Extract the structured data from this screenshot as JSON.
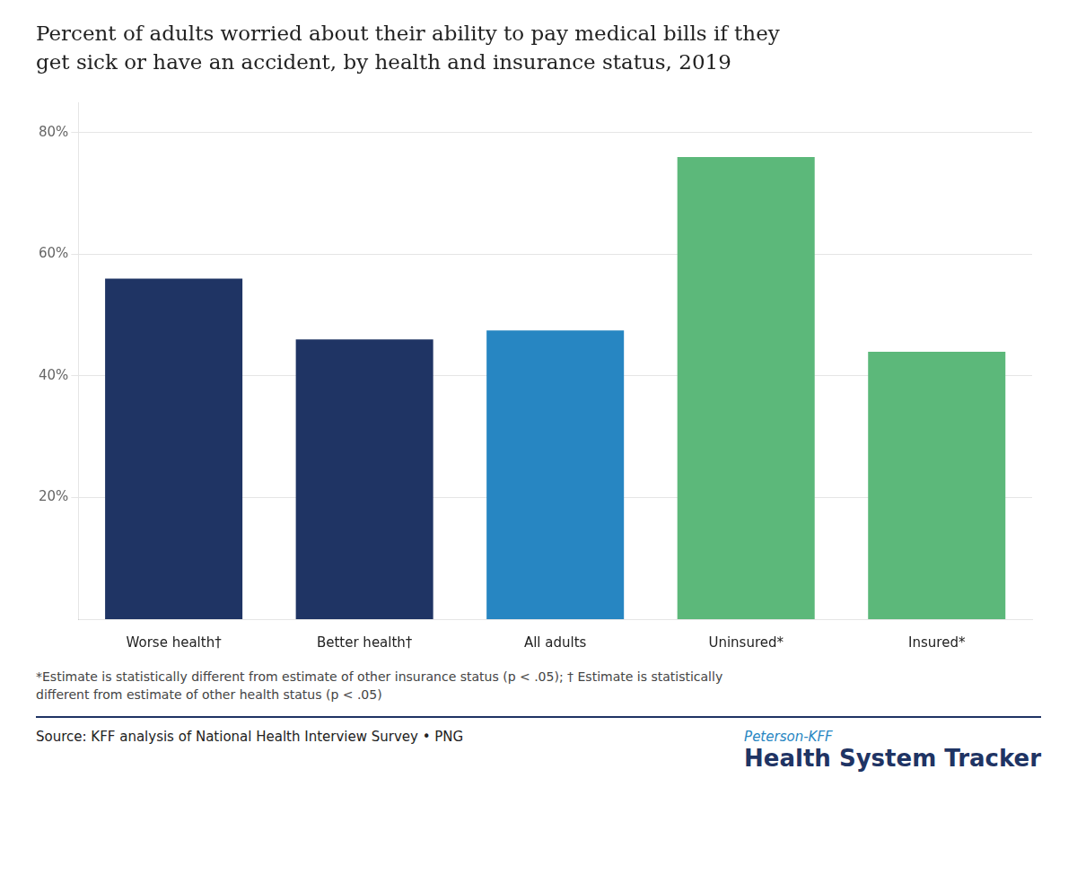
{
  "chart_data": {
    "type": "bar",
    "title": [
      "Percent of adults worried about their ability to pay medical bills if they",
      "get sick or have an accident, by health and insurance status, 2019"
    ],
    "categories": [
      "Worse health†",
      "Better health†",
      "All adults",
      "Uninsured*",
      "Insured*"
    ],
    "values": [
      56.0,
      46.0,
      47.5,
      76.0,
      44.0
    ],
    "colors": [
      "#1f3464",
      "#1f3464",
      "#2786c2",
      "#5cb87a",
      "#5cb87a"
    ],
    "ylim": [
      0,
      85
    ],
    "yticks": [
      {
        "value": 20,
        "label": "20%"
      },
      {
        "value": 40,
        "label": "40%"
      },
      {
        "value": 60,
        "label": "60%"
      },
      {
        "value": 80,
        "label": "80%"
      }
    ],
    "grid": true,
    "annotations": [
      "*Estimate is statistically different from estimate of other insurance status (p < .05); † Estimate is statistically",
      "different from estimate of other health status (p < .05)",
      "Source: KFF analysis of National Health Interview Survey • PNG",
      "Peterson-KFF",
      "Health System Tracker"
    ]
  }
}
